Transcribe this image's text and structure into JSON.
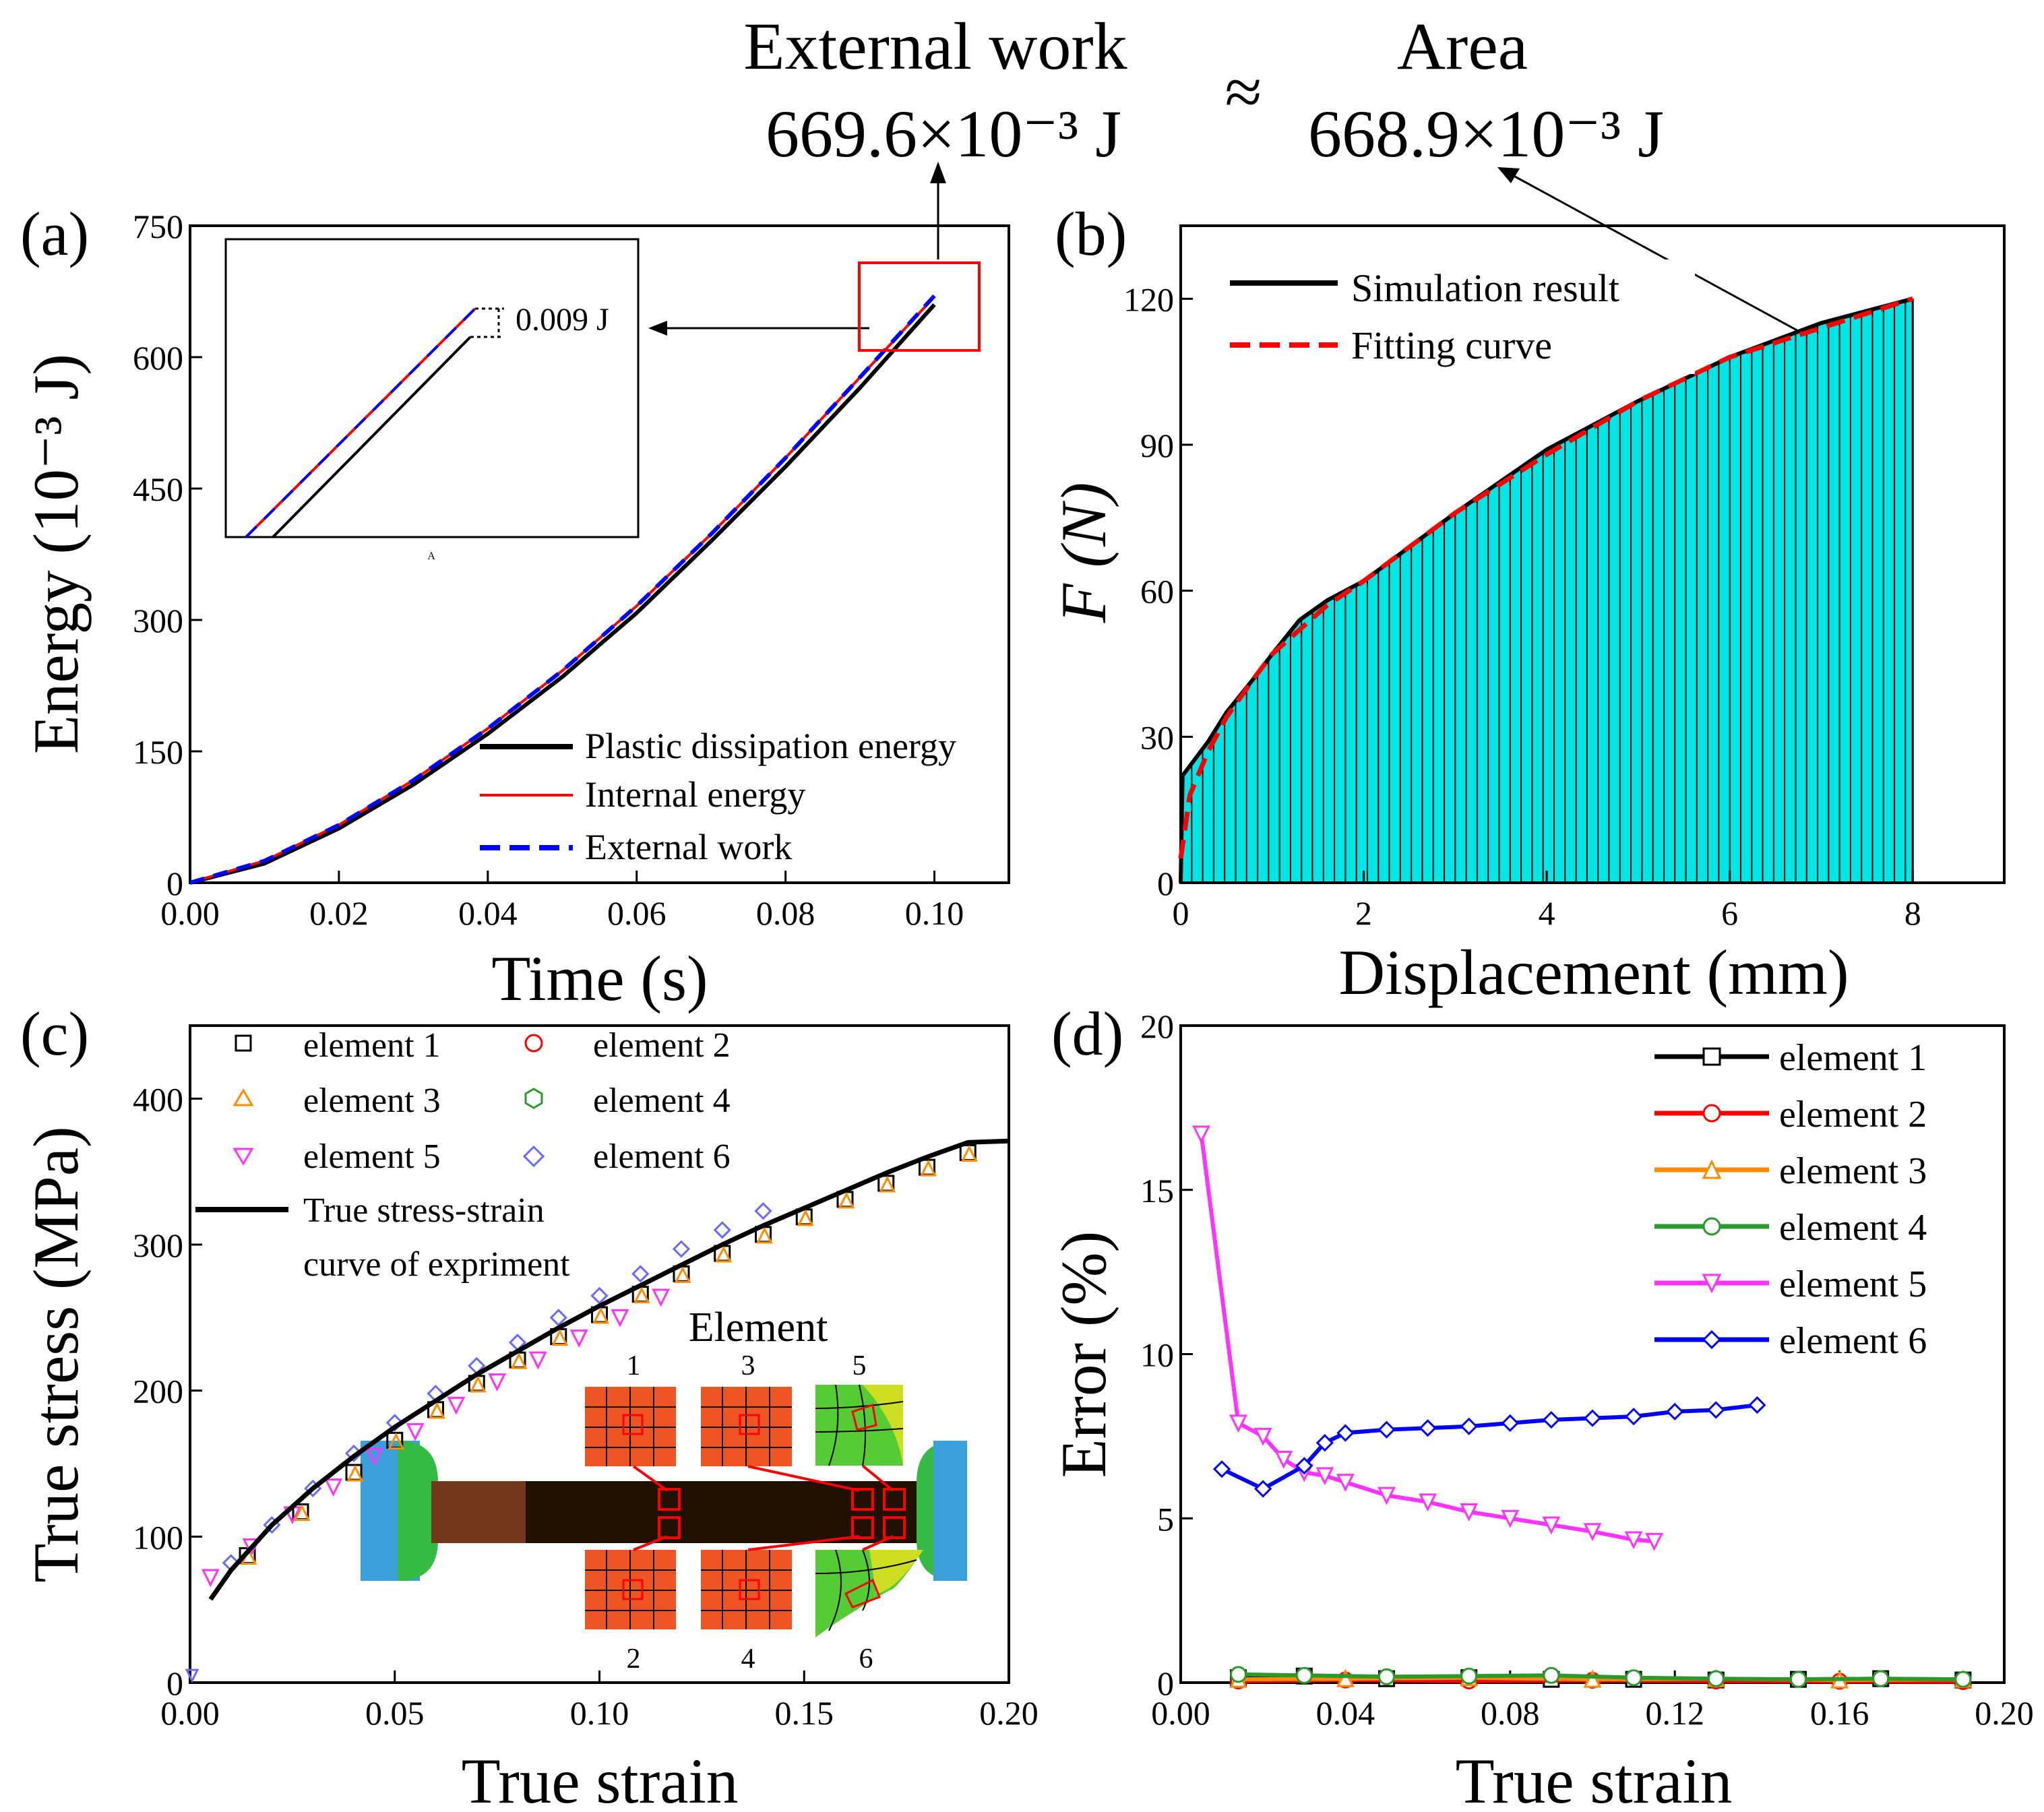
{
  "header": {
    "left_title": "External work",
    "left_value": "669.6×10⁻³ J",
    "approx": "≈",
    "right_title": "Area",
    "right_value": "668.9×10⁻³ J"
  },
  "colors": {
    "black": "#000000",
    "red": "#ff0000",
    "blue": "#0000ff",
    "cyan": "#00e5e5",
    "orange": "#ff8c00",
    "green": "#2a9a2a",
    "magenta": "#ff33ff",
    "violet_blue": "#6a6aff"
  },
  "chart_data": [
    {
      "panel": "(a)",
      "type": "line",
      "xlabel": "Time (s)",
      "ylabel": "Energy (10⁻³ J)",
      "xlim": [
        0,
        0.11
      ],
      "ylim": [
        0,
        750
      ],
      "xticks": [
        0,
        0.02,
        0.04,
        0.06,
        0.08,
        0.1
      ],
      "xtick_labels": [
        "0.00",
        "0.02",
        "0.04",
        "0.06",
        "0.08",
        "0.10"
      ],
      "yticks": [
        0,
        150,
        300,
        450,
        600,
        750
      ],
      "ytick_labels": [
        "0",
        "150",
        "300",
        "450",
        "600",
        "750"
      ],
      "legend": [
        "Plastic dissipation energy",
        "Internal energy",
        "External work"
      ],
      "series": [
        {
          "name": "Plastic dissipation energy",
          "color": "#000000",
          "style": "solid",
          "x": [
            0,
            0.01,
            0.02,
            0.03,
            0.04,
            0.05,
            0.06,
            0.07,
            0.08,
            0.09,
            0.1
          ],
          "y": [
            0,
            22,
            62,
            112,
            170,
            235,
            308,
            390,
            475,
            565,
            660
          ]
        },
        {
          "name": "Internal energy",
          "color": "#ff0000",
          "style": "solid",
          "x": [
            0,
            0.01,
            0.02,
            0.03,
            0.04,
            0.05,
            0.06,
            0.07,
            0.08,
            0.09,
            0.1
          ],
          "y": [
            0,
            25,
            66,
            117,
            176,
            242,
            316,
            398,
            485,
            577,
            669
          ]
        },
        {
          "name": "External work",
          "color": "#0000ff",
          "style": "dashed",
          "x": [
            0,
            0.01,
            0.02,
            0.03,
            0.04,
            0.05,
            0.06,
            0.07,
            0.08,
            0.09,
            0.1
          ],
          "y": [
            0,
            25,
            66,
            117,
            176,
            242,
            316,
            398,
            485,
            577,
            670
          ]
        }
      ],
      "inset_annotation": "0.009 J",
      "inset_tick": "A"
    },
    {
      "panel": "(b)",
      "type": "area",
      "xlabel": "Displacement (mm)",
      "ylabel": "F (N)",
      "xlim": [
        0,
        9
      ],
      "ylim": [
        0,
        135
      ],
      "xticks": [
        0,
        2,
        4,
        6,
        8
      ],
      "xtick_labels": [
        "0",
        "2",
        "4",
        "6",
        "8"
      ],
      "yticks": [
        0,
        30,
        60,
        90,
        120
      ],
      "ytick_labels": [
        "0",
        "30",
        "60",
        "90",
        "120"
      ],
      "legend": [
        "Simulation result",
        "Fitting curve"
      ],
      "series": [
        {
          "name": "Simulation result",
          "color": "#000000",
          "style": "solid",
          "x": [
            0,
            0.02,
            0.1,
            0.3,
            0.5,
            0.8,
            1.0,
            1.3,
            1.6,
            2,
            3,
            4,
            5,
            6,
            7,
            8
          ],
          "y": [
            0,
            22,
            24,
            29,
            35,
            42,
            47,
            54,
            58,
            62,
            76,
            89,
            99,
            108,
            115,
            120
          ]
        },
        {
          "name": "Fitting curve",
          "color": "#ff0000",
          "style": "dashed",
          "x": [
            0,
            0.1,
            0.3,
            0.5,
            0.8,
            1.0,
            1.3,
            1.6,
            2,
            3,
            4,
            5,
            6,
            7,
            8
          ],
          "y": [
            5,
            18,
            27,
            34,
            42,
            47,
            52,
            57,
            62,
            76,
            88,
            99,
            108,
            114,
            120
          ]
        }
      ]
    },
    {
      "panel": "(c)",
      "type": "scatter",
      "xlabel": "True strain",
      "ylabel": "True stress (MPa)",
      "xlim": [
        0,
        0.2
      ],
      "ylim": [
        0,
        450
      ],
      "xticks": [
        0,
        0.05,
        0.1,
        0.15,
        0.2
      ],
      "xtick_labels": [
        "0.00",
        "0.05",
        "0.10",
        "0.15",
        "0.20"
      ],
      "yticks": [
        0,
        100,
        200,
        300,
        400
      ],
      "ytick_labels": [
        "0",
        "100",
        "200",
        "300",
        "400"
      ],
      "legend": [
        "element 1",
        "element 2",
        "element 3",
        "element 4",
        "element 5",
        "element 6",
        "True stress-strain",
        "curve of expriment"
      ],
      "curve": {
        "x": [
          0.005,
          0.01,
          0.02,
          0.03,
          0.04,
          0.05,
          0.06,
          0.07,
          0.08,
          0.09,
          0.1,
          0.11,
          0.12,
          0.13,
          0.14,
          0.15,
          0.16,
          0.17,
          0.18,
          0.19,
          0.2
        ],
        "y": [
          57,
          77,
          108,
          133,
          155,
          175,
          193,
          211,
          227,
          243,
          258,
          272,
          286,
          300,
          313,
          325,
          337,
          349,
          360,
          370,
          371
        ]
      },
      "markers": [
        {
          "name": "element 1",
          "shape": "square",
          "color": "#000000",
          "x": [
            0.014,
            0.027,
            0.04,
            0.05,
            0.06,
            0.07,
            0.08,
            0.09,
            0.1,
            0.11,
            0.12,
            0.13,
            0.14,
            0.15,
            0.16,
            0.17,
            0.18,
            0.19
          ],
          "y": [
            87,
            117,
            144,
            166,
            187,
            205,
            221,
            237,
            252,
            266,
            280,
            294,
            307,
            319,
            331,
            342,
            353,
            363
          ]
        },
        {
          "name": "element 5",
          "shape": "triangle-down",
          "color": "#ff33ff",
          "x": [
            0.005,
            0.015,
            0.025,
            0.035,
            0.045,
            0.055,
            0.065,
            0.075,
            0.085,
            0.095,
            0.105,
            0.115
          ],
          "y": [
            72,
            93,
            115,
            134,
            155,
            172,
            190,
            206,
            221,
            236,
            250,
            264
          ]
        },
        {
          "name": "element 6",
          "shape": "diamond",
          "color": "#6a6aff",
          "x": [
            0.01,
            0.02,
            0.03,
            0.04,
            0.05,
            0.06,
            0.07,
            0.08,
            0.09,
            0.1,
            0.11,
            0.12,
            0.13,
            0.14
          ],
          "y": [
            82,
            108,
            133,
            157,
            178,
            198,
            217,
            233,
            250,
            265,
            280,
            297,
            310,
            323
          ]
        }
      ],
      "inset": {
        "title": "Element",
        "labels": [
          "1",
          "3",
          "5",
          "2",
          "4",
          "6"
        ]
      }
    },
    {
      "panel": "(d)",
      "type": "line",
      "xlabel": "True strain",
      "ylabel": "Error (%)",
      "xlim": [
        0,
        0.2
      ],
      "ylim": [
        0,
        20
      ],
      "xticks": [
        0,
        0.04,
        0.08,
        0.12,
        0.16,
        0.2
      ],
      "xtick_labels": [
        "0.00",
        "0.04",
        "0.08",
        "0.12",
        "0.16",
        "0.20"
      ],
      "yticks": [
        0,
        5,
        10,
        15,
        20
      ],
      "ytick_labels": [
        "0",
        "5",
        "10",
        "15",
        "20"
      ],
      "legend": [
        "element 1",
        "element 2",
        "element 3",
        "element 4",
        "element 5",
        "element 6"
      ],
      "series": [
        {
          "name": "element 1",
          "color": "#000000",
          "marker": "square",
          "x": [
            0.014,
            0.03,
            0.05,
            0.07,
            0.09,
            0.11,
            0.13,
            0.15,
            0.17,
            0.19
          ],
          "y": [
            0.15,
            0.2,
            0.12,
            0.15,
            0.1,
            0.1,
            0.08,
            0.1,
            0.12,
            0.08
          ]
        },
        {
          "name": "element 2",
          "color": "#ff0000",
          "marker": "circle",
          "x": [
            0.014,
            0.04,
            0.07,
            0.1,
            0.13,
            0.16,
            0.19
          ],
          "y": [
            0.05,
            0.08,
            0.05,
            0.07,
            0.05,
            0.04,
            0.03
          ]
        },
        {
          "name": "element 3",
          "color": "#ff8c00",
          "marker": "triangle-up",
          "x": [
            0.014,
            0.04,
            0.07,
            0.1,
            0.13,
            0.16,
            0.19
          ],
          "y": [
            0.1,
            0.12,
            0.15,
            0.1,
            0.12,
            0.08,
            0.1
          ]
        },
        {
          "name": "element 4",
          "color": "#2a9a2a",
          "marker": "circle",
          "x": [
            0.014,
            0.03,
            0.05,
            0.07,
            0.09,
            0.11,
            0.13,
            0.15,
            0.17,
            0.19
          ],
          "y": [
            0.25,
            0.22,
            0.18,
            0.2,
            0.22,
            0.15,
            0.12,
            0.1,
            0.12,
            0.1
          ]
        },
        {
          "name": "element 5",
          "color": "#ff33ff",
          "marker": "triangle-down",
          "x": [
            0.005,
            0.014,
            0.02,
            0.025,
            0.03,
            0.035,
            0.04,
            0.05,
            0.06,
            0.07,
            0.08,
            0.09,
            0.1,
            0.11,
            0.115
          ],
          "y": [
            16.7,
            7.9,
            7.5,
            6.8,
            6.4,
            6.3,
            6.1,
            5.7,
            5.5,
            5.2,
            5.0,
            4.8,
            4.6,
            4.35,
            4.3
          ]
        },
        {
          "name": "element 6",
          "color": "#0000ff",
          "marker": "diamond",
          "x": [
            0.01,
            0.02,
            0.03,
            0.035,
            0.04,
            0.05,
            0.06,
            0.07,
            0.08,
            0.09,
            0.1,
            0.11,
            0.12,
            0.13,
            0.14
          ],
          "y": [
            6.5,
            5.9,
            6.6,
            7.3,
            7.6,
            7.7,
            7.75,
            7.8,
            7.9,
            8.0,
            8.05,
            8.1,
            8.25,
            8.3,
            8.45
          ]
        }
      ]
    }
  ]
}
